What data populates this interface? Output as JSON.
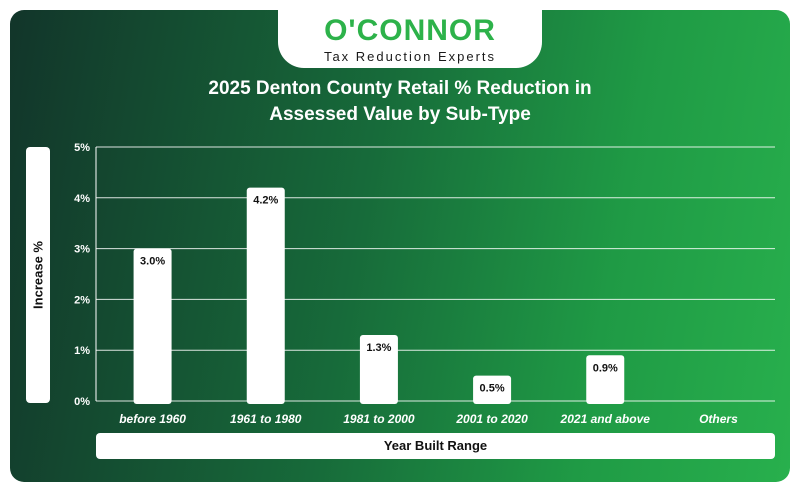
{
  "brand": {
    "name": "O'CONNOR",
    "tagline": "Tax Reduction Experts"
  },
  "chart_data": {
    "type": "bar",
    "title_line1": "2025 Denton County Retail % Reduction in",
    "title_line2": "Assessed Value by Sub-Type",
    "xlabel": "Year Built Range",
    "ylabel": "Increase %",
    "categories": [
      "before 1960",
      "1961 to 1980",
      "1981 to 2000",
      "2001 to 2020",
      "2021 and above",
      "Others"
    ],
    "values": [
      3.0,
      4.2,
      1.3,
      0.5,
      0.9,
      null
    ],
    "value_labels": [
      "3.0%",
      "4.2%",
      "1.3%",
      "0.5%",
      "0.9%",
      ""
    ],
    "yticks": [
      0,
      1,
      2,
      3,
      4,
      5
    ],
    "ytick_labels": [
      "0%",
      "1%",
      "2%",
      "3%",
      "4%",
      "5%"
    ],
    "ylim": [
      0,
      5
    ],
    "grid": true,
    "colors": {
      "bar": "#ffffff",
      "grid": "#ffffff",
      "text": "#ffffff",
      "label": "#111111"
    }
  }
}
